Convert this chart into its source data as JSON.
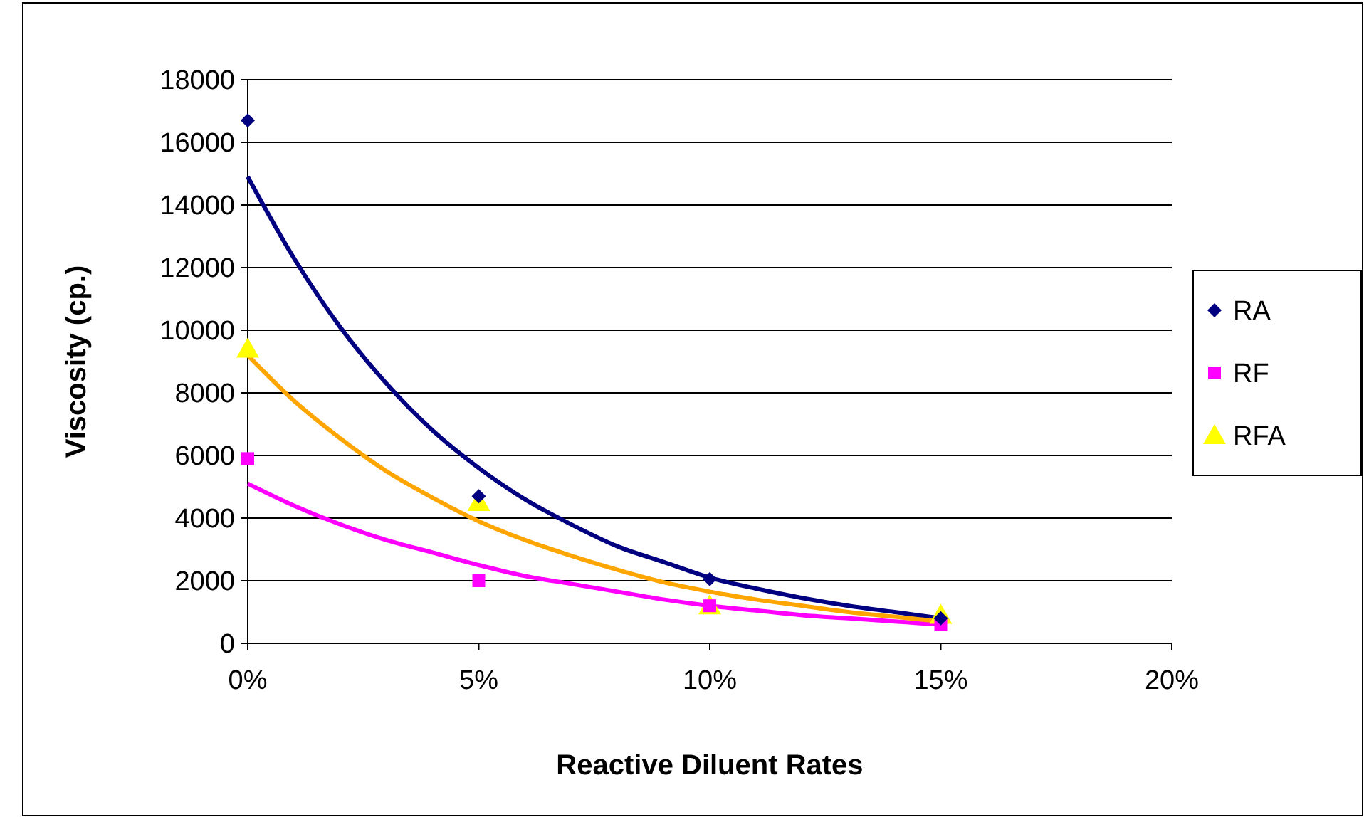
{
  "chart_data": {
    "type": "scatter",
    "xlabel": "Reactive Diluent Rates",
    "ylabel": "Viscosity (cp.)",
    "xlim": [
      0,
      20
    ],
    "xticks": [
      {
        "value": 0,
        "label": "0%"
      },
      {
        "value": 5,
        "label": "5%"
      },
      {
        "value": 10,
        "label": "10%"
      },
      {
        "value": 15,
        "label": "15%"
      },
      {
        "value": 20,
        "label": "20%"
      }
    ],
    "ylim": [
      0,
      18000
    ],
    "yticks": [
      0,
      2000,
      4000,
      6000,
      8000,
      10000,
      12000,
      14000,
      16000,
      18000
    ],
    "grid": "y",
    "legend": "right",
    "x": [
      0,
      5,
      10,
      15
    ],
    "series": [
      {
        "name": "RA",
        "color": "#000080",
        "marker": "diamond",
        "values": [
          16700,
          4700,
          2050,
          800
        ]
      },
      {
        "name": "RF",
        "color": "#ff00ff",
        "marker": "square",
        "values": [
          5900,
          2000,
          1200,
          600
        ]
      },
      {
        "name": "RFA",
        "color": "#ffff00",
        "marker": "triangle",
        "values": [
          9400,
          4500,
          1200,
          900
        ]
      },
      {
        "type": "line",
        "color": "#000080",
        "marker": "none",
        "x": [
          0,
          1,
          2,
          3,
          4,
          5,
          6,
          7,
          8,
          9,
          10,
          11,
          12,
          13,
          14,
          15
        ],
        "values": [
          14900,
          12300,
          10100,
          8300,
          6800,
          5600,
          4600,
          3800,
          3100,
          2600,
          2100,
          1750,
          1450,
          1200,
          1000,
          800
        ]
      },
      {
        "type": "line",
        "color": "#ff00ff",
        "marker": "none",
        "x": [
          0,
          1,
          2,
          3,
          4,
          5,
          6,
          7,
          8,
          9,
          10,
          11,
          12,
          13,
          14,
          15
        ],
        "values": [
          5100,
          4400,
          3800,
          3300,
          2900,
          2500,
          2150,
          1900,
          1650,
          1400,
          1200,
          1050,
          900,
          800,
          700,
          600
        ]
      },
      {
        "type": "line",
        "color": "#ffa500",
        "marker": "none",
        "x": [
          0,
          1,
          2,
          3,
          4,
          5,
          6,
          7,
          8,
          9,
          10,
          11,
          12,
          13,
          14,
          15
        ],
        "values": [
          9200,
          7750,
          6550,
          5500,
          4650,
          3900,
          3300,
          2800,
          2350,
          1950,
          1650,
          1400,
          1200,
          1000,
          850,
          700
        ]
      }
    ]
  }
}
